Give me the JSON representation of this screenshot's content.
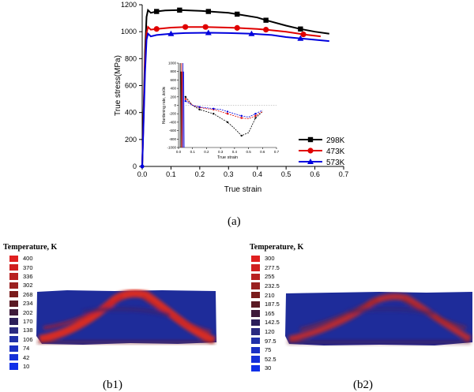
{
  "captions": {
    "a": "(a)",
    "b1": "(b1)",
    "b2": "(b2)"
  },
  "chart_data": [
    {
      "type": "line",
      "title": "",
      "xlabel": "True strain",
      "ylabel": "True stress(MPa)",
      "xlim": [
        0.0,
        0.7
      ],
      "ylim": [
        0,
        1200
      ],
      "xticks": [
        "0.0",
        "0.1",
        "0.2",
        "0.3",
        "0.4",
        "0.5",
        "0.6",
        "0.7"
      ],
      "yticks": [
        "0",
        "200",
        "400",
        "600",
        "800",
        "1000",
        "1200"
      ],
      "legend_position": "bottom-right",
      "series": [
        {
          "name": "298K",
          "color": "#000000",
          "marker": "square",
          "x": [
            0.0,
            0.005,
            0.01,
            0.015,
            0.02,
            0.03,
            0.05,
            0.08,
            0.13,
            0.2,
            0.23,
            0.3,
            0.33,
            0.4,
            0.43,
            0.5,
            0.55,
            0.6,
            0.65
          ],
          "y": [
            0,
            420,
            850,
            1110,
            1160,
            1140,
            1150,
            1158,
            1160,
            1155,
            1150,
            1140,
            1130,
            1105,
            1085,
            1045,
            1020,
            1000,
            985
          ],
          "markers_x": [
            0.05,
            0.13,
            0.23,
            0.33,
            0.43,
            0.55
          ]
        },
        {
          "name": "473K",
          "color": "#e00000",
          "marker": "circle",
          "x": [
            0.0,
            0.005,
            0.01,
            0.015,
            0.02,
            0.03,
            0.05,
            0.1,
            0.15,
            0.22,
            0.3,
            0.33,
            0.4,
            0.43,
            0.5,
            0.56,
            0.62
          ],
          "y": [
            0,
            380,
            780,
            990,
            1035,
            1015,
            1020,
            1030,
            1035,
            1035,
            1030,
            1028,
            1020,
            1015,
            1000,
            980,
            965
          ],
          "markers_x": [
            0.05,
            0.15,
            0.22,
            0.33,
            0.43,
            0.56
          ]
        },
        {
          "name": "573K",
          "color": "#0000dd",
          "marker": "triangle",
          "x": [
            0.0,
            0.005,
            0.01,
            0.015,
            0.02,
            0.03,
            0.05,
            0.1,
            0.15,
            0.23,
            0.3,
            0.38,
            0.45,
            0.5,
            0.55,
            0.65
          ],
          "y": [
            0,
            340,
            700,
            940,
            985,
            965,
            975,
            985,
            990,
            992,
            990,
            985,
            975,
            960,
            950,
            930
          ],
          "markers_x": [
            0.1,
            0.23,
            0.38,
            0.55
          ]
        }
      ]
    },
    {
      "type": "line",
      "title": "",
      "xlabel": "True strain",
      "ylabel": "Hardening rate, ∂σ/∂ε",
      "xlim": [
        0.0,
        0.7
      ],
      "ylim": [
        -1000,
        1000
      ],
      "xticks": [
        "0.0",
        "0.1",
        "0.2",
        "0.3",
        "0.4",
        "0.5",
        "0.6",
        "0.7"
      ],
      "yticks": [
        "-1000",
        "-800",
        "-600",
        "-400",
        "-200",
        "0",
        "200",
        "400",
        "600",
        "800",
        "1000"
      ],
      "series": [
        {
          "color": "#000000",
          "x": [
            0.05,
            0.1,
            0.15,
            0.2,
            0.25,
            0.3,
            0.35,
            0.4,
            0.45,
            0.5,
            0.55,
            0.6
          ],
          "y": [
            200,
            0,
            -100,
            -150,
            -200,
            -300,
            -400,
            -550,
            -720,
            -650,
            -300,
            -150
          ]
        },
        {
          "color": "#e00000",
          "x": [
            0.05,
            0.1,
            0.15,
            0.2,
            0.25,
            0.3,
            0.35,
            0.4,
            0.45,
            0.5,
            0.55,
            0.6
          ],
          "y": [
            150,
            0,
            -50,
            -80,
            -100,
            -150,
            -200,
            -250,
            -300,
            -320,
            -250,
            -150
          ]
        },
        {
          "color": "#0000dd",
          "x": [
            0.05,
            0.1,
            0.15,
            0.2,
            0.25,
            0.3,
            0.35,
            0.4,
            0.45,
            0.5,
            0.55,
            0.6
          ],
          "y": [
            100,
            0,
            -40,
            -60,
            -80,
            -100,
            -150,
            -200,
            -250,
            -280,
            -200,
            -120
          ]
        }
      ]
    }
  ],
  "legend_b1": {
    "title": "Temperature, K",
    "values": [
      "400",
      "370",
      "336",
      "302",
      "268",
      "234",
      "202",
      "170",
      "138",
      "106",
      "74",
      "42",
      "10"
    ]
  },
  "legend_b2": {
    "title": "Temperature, K",
    "values": [
      "300",
      "277.5",
      "255",
      "232.5",
      "210",
      "187.5",
      "165",
      "142.5",
      "120",
      "97.5",
      "75",
      "52.5",
      "30"
    ]
  },
  "colormap": [
    "#e02020",
    "#d02020",
    "#b82020",
    "#9a2020",
    "#7a1c1c",
    "#5a1a24",
    "#3e1a3a",
    "#2c1f5a",
    "#2a2a80",
    "#2030a8",
    "#1a30c4",
    "#1530d8",
    "#1030e8"
  ]
}
